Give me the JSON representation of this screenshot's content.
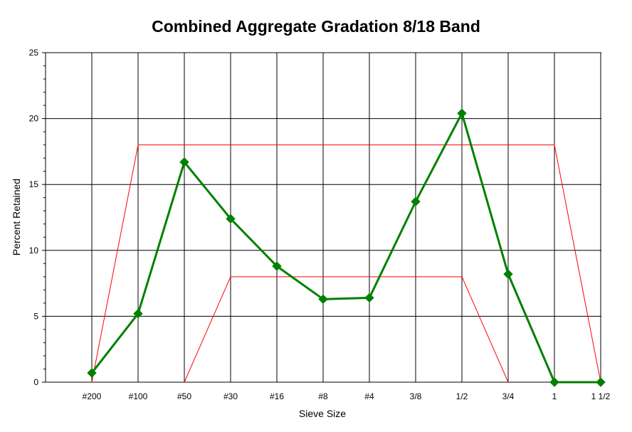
{
  "chart_data": {
    "type": "line",
    "title": "Combined Aggregate Gradation 8/18 Band",
    "xlabel": "Sieve Size",
    "ylabel": "Percent Retained",
    "categories": [
      "#200",
      "#100",
      "#50",
      "#30",
      "#16",
      "#8",
      "#4",
      "3/8",
      "1/2",
      "3/4",
      "1",
      "1 1/2"
    ],
    "ylim": [
      0,
      25
    ],
    "yticks": [
      0,
      5,
      10,
      15,
      20,
      25
    ],
    "grid": true,
    "series": [
      {
        "role": "gradation",
        "color": "#008000",
        "marker": "diamond",
        "values": [
          0.7,
          5.2,
          16.7,
          12.4,
          8.8,
          6.3,
          6.4,
          13.7,
          20.4,
          8.2,
          0,
          0
        ]
      },
      {
        "role": "upper-band",
        "color": "#ff0000",
        "values": [
          0,
          18,
          18,
          18,
          18,
          18,
          18,
          18,
          18,
          18,
          18,
          0
        ]
      },
      {
        "role": "lower-band",
        "color": "#ff0000",
        "values": [
          null,
          null,
          0,
          8,
          8,
          8,
          8,
          8,
          8,
          0,
          null,
          null
        ]
      }
    ]
  }
}
